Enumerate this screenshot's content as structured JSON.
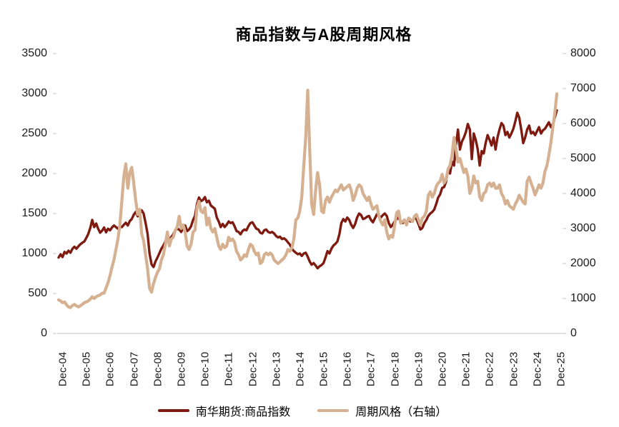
{
  "chart_data": {
    "type": "line",
    "title": "商品指数与A股周期风格",
    "x_unit": "monthly",
    "x_range": [
      "Dec-2004",
      "Dec-2025"
    ],
    "x_tick_labels": [
      "Dec-04",
      "Dec-05",
      "Dec-06",
      "Dec-07",
      "Dec-08",
      "Dec-09",
      "Dec-10",
      "Dec-11",
      "Dec-12",
      "Dec-13",
      "Dec-14",
      "Dec-15",
      "Dec-16",
      "Dec-17",
      "Dec-18",
      "Dec-19",
      "Dec-20",
      "Dec-21",
      "Dec-22",
      "Dec-23",
      "Dec-24",
      "Dec-25"
    ],
    "left_axis": {
      "min": 0,
      "max": 3500,
      "ticks": [
        0,
        500,
        1000,
        1500,
        2000,
        2500,
        3000,
        3500
      ]
    },
    "right_axis": {
      "min": 0,
      "max": 8000,
      "ticks": [
        0,
        1000,
        2000,
        3000,
        4000,
        5000,
        6000,
        7000,
        8000
      ]
    },
    "grid": false,
    "legend_position": "bottom",
    "series": [
      {
        "name": "南华期货:商品指数",
        "axis": "left",
        "color": "#7e1a10",
        "values": [
          950,
          990,
          955,
          1020,
          1000,
          1035,
          1010,
          1060,
          1085,
          1060,
          1090,
          1115,
          1135,
          1150,
          1195,
          1245,
          1320,
          1420,
          1330,
          1375,
          1310,
          1260,
          1285,
          1325,
          1265,
          1310,
          1290,
          1325,
          1350,
          1330,
          1310,
          1340,
          1330,
          1360,
          1385,
          1350,
          1405,
          1430,
          1485,
          1520,
          1465,
          1495,
          1540,
          1500,
          1380,
          1245,
          1000,
          865,
          830,
          900,
          950,
          1005,
          1060,
          1100,
          1150,
          1220,
          1180,
          1205,
          1240,
          1290,
          1310,
          1300,
          1270,
          1320,
          1350,
          1280,
          1300,
          1340,
          1420,
          1470,
          1620,
          1700,
          1655,
          1670,
          1705,
          1640,
          1660,
          1600,
          1580,
          1560,
          1450,
          1400,
          1330,
          1370,
          1330,
          1360,
          1400,
          1380,
          1390,
          1340,
          1280,
          1270,
          1240,
          1280,
          1300,
          1290,
          1340,
          1380,
          1390,
          1350,
          1310,
          1300,
          1260,
          1250,
          1290,
          1300,
          1270,
          1260,
          1270,
          1250,
          1220,
          1200,
          1210,
          1180,
          1190,
          1170,
          1140,
          1110,
          1060,
          1030,
          1010,
          990,
          1000,
          970,
          1000,
          1010,
          960,
          900,
          860,
          880,
          850,
          815,
          840,
          855,
          880,
          950,
          1030,
          1000,
          1060,
          1100,
          1120,
          1150,
          1240,
          1380,
          1430,
          1400,
          1450,
          1420,
          1360,
          1320,
          1370,
          1450,
          1500,
          1480,
          1430,
          1440,
          1460,
          1470,
          1420,
          1390,
          1440,
          1490,
          1470,
          1450,
          1480,
          1500,
          1470,
          1380,
          1330,
          1360,
          1400,
          1430,
          1450,
          1390,
          1380,
          1410,
          1390,
          1420,
          1400,
          1410,
          1450,
          1430,
          1370,
          1300,
          1320,
          1380,
          1420,
          1470,
          1500,
          1520,
          1550,
          1620,
          1700,
          1740,
          1820,
          1830,
          1900,
          2050,
          2000,
          2150,
          2100,
          2350,
          2550,
          2300,
          2400,
          2450,
          2520,
          2620,
          2550,
          2180,
          2500,
          2420,
          2300,
          2100,
          2280,
          2250,
          2380,
          2480,
          2420,
          2350,
          2450,
          2300,
          2450,
          2550,
          2630,
          2600,
          2480,
          2520,
          2450,
          2500,
          2560,
          2650,
          2760,
          2700,
          2550,
          2380,
          2450,
          2550,
          2600,
          2500,
          2520,
          2480,
          2530,
          2580,
          2500,
          2540,
          2560,
          2600,
          2640,
          2580,
          2620,
          2700,
          2790
        ]
      },
      {
        "name": "周期风格（右轴）",
        "axis": "right",
        "color": "#d5b091",
        "values": [
          960,
          930,
          880,
          900,
          820,
          760,
          740,
          800,
          830,
          790,
          760,
          790,
          830,
          880,
          900,
          930,
          980,
          1050,
          1000,
          1050,
          1080,
          1100,
          1150,
          1150,
          1300,
          1450,
          1650,
          1900,
          2100,
          2400,
          2700,
          3100,
          3800,
          4500,
          4850,
          4150,
          4600,
          4750,
          4300,
          3800,
          3400,
          3550,
          2850,
          2650,
          2250,
          1850,
          1300,
          1180,
          1420,
          1600,
          1750,
          1850,
          2100,
          2250,
          2550,
          2900,
          2500,
          2700,
          2750,
          2950,
          3050,
          3350,
          3000,
          3100,
          2900,
          2500,
          2400,
          2550,
          2900,
          2950,
          3600,
          3780,
          3500,
          3450,
          3600,
          3100,
          3300,
          3000,
          2900,
          3000,
          2750,
          2500,
          2400,
          2550,
          2450,
          2500,
          2750,
          2650,
          2700,
          2600,
          2350,
          2250,
          2100,
          2150,
          2250,
          2200,
          2400,
          2550,
          2500,
          2350,
          2250,
          2300,
          2000,
          2050,
          2250,
          2300,
          2250,
          2300,
          2250,
          2100,
          2050,
          2000,
          2050,
          2100,
          2150,
          2250,
          2400,
          2350,
          2450,
          2700,
          3250,
          3300,
          3500,
          3900,
          4800,
          5600,
          6950,
          5250,
          3700,
          3400,
          4100,
          4600,
          4250,
          3500,
          3450,
          3800,
          3900,
          3750,
          3900,
          4000,
          4100,
          4050,
          4150,
          4250,
          4100,
          4150,
          4200,
          4250,
          4100,
          3800,
          3950,
          4150,
          4250,
          4200,
          4000,
          3900,
          3800,
          3900,
          3700,
          3550,
          3600,
          3650,
          3350,
          3200,
          3100,
          3250,
          2900,
          2700,
          2800,
          2750,
          3100,
          3450,
          3500,
          3150,
          3200,
          3250,
          3100,
          3300,
          3250,
          3200,
          3350,
          3400,
          3250,
          3100,
          3300,
          3350,
          3500,
          3950,
          4050,
          3900,
          4000,
          4200,
          4300,
          4350,
          4550,
          4300,
          4400,
          4700,
          4800,
          5100,
          5600,
          5300,
          4900,
          5000,
          4800,
          4600,
          4700,
          4500,
          4000,
          4150,
          4500,
          4300,
          4350,
          3900,
          3800,
          4000,
          4050,
          4250,
          4300,
          4200,
          4300,
          4150,
          4150,
          4250,
          4000,
          3900,
          3700,
          3800,
          3650,
          3600,
          3550,
          3700,
          3800,
          3950,
          3850,
          3750,
          3700,
          4350,
          4470,
          4300,
          4150,
          3960,
          4100,
          4250,
          4150,
          4300,
          4630,
          4800,
          5100,
          5450,
          5900,
          6300,
          6850
        ]
      }
    ]
  }
}
